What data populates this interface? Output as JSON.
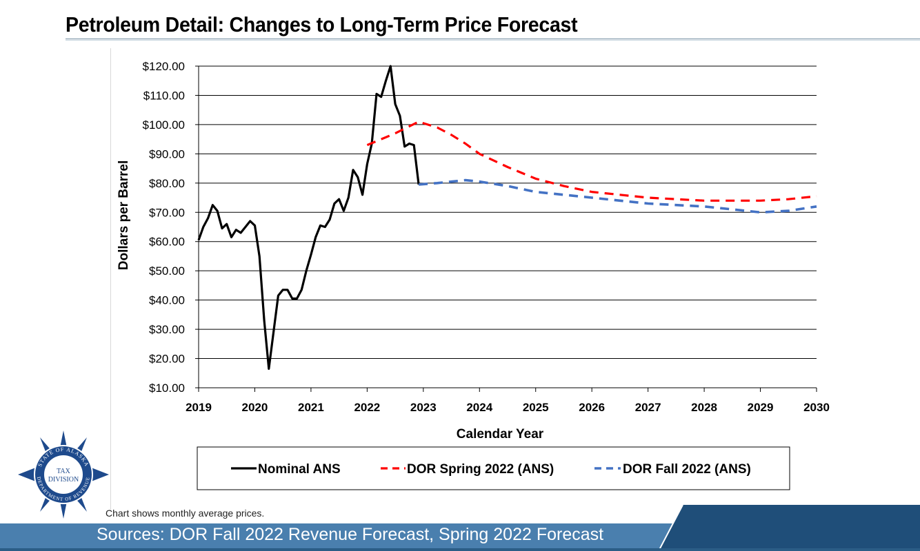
{
  "header": {
    "title": "Petroleum Detail:  Changes to Long-Term Price Forecast"
  },
  "footer": {
    "note": "Chart shows monthly average prices.",
    "sources": "Sources:  DOR Fall 2022 Revenue Forecast, Spring 2022 Forecast"
  },
  "logo": {
    "lines": [
      "STATE OF ALASKA",
      "TAX",
      "DIVISION",
      "DEPARTMENT OF REVENUE"
    ]
  },
  "colors": {
    "nominal": "#000000",
    "spring": "#ff0000",
    "fall": "#4472c4",
    "footer_band": "#4a7fae",
    "footer_dark": "#1f4e79"
  },
  "chart_data": {
    "type": "line",
    "title": "",
    "xlabel": "Calendar Year",
    "ylabel": "Dollars per Barrel",
    "xlim": [
      2019,
      2030
    ],
    "ylim": [
      10,
      120
    ],
    "x_ticks": [
      2019,
      2020,
      2021,
      2022,
      2023,
      2024,
      2025,
      2026,
      2027,
      2028,
      2029,
      2030
    ],
    "y_ticks": [
      10,
      20,
      30,
      40,
      50,
      60,
      70,
      80,
      90,
      100,
      110,
      120
    ],
    "y_tick_labels": [
      "$10.00",
      "$20.00",
      "$30.00",
      "$40.00",
      "$50.00",
      "$60.00",
      "$70.00",
      "$80.00",
      "$90.00",
      "$100.00",
      "$110.00",
      "$120.00"
    ],
    "grid": "horizontal",
    "legend_position": "bottom",
    "series": [
      {
        "name": "Nominal ANS",
        "style": "solid",
        "x": [
          2019.0,
          2019.083,
          2019.167,
          2019.25,
          2019.333,
          2019.417,
          2019.5,
          2019.583,
          2019.667,
          2019.75,
          2019.833,
          2019.917,
          2020.0,
          2020.083,
          2020.167,
          2020.25,
          2020.333,
          2020.417,
          2020.5,
          2020.583,
          2020.667,
          2020.75,
          2020.833,
          2020.917,
          2021.0,
          2021.083,
          2021.167,
          2021.25,
          2021.333,
          2021.417,
          2021.5,
          2021.583,
          2021.667,
          2021.75,
          2021.833,
          2021.917,
          2022.0,
          2022.083,
          2022.167,
          2022.25,
          2022.333,
          2022.417,
          2022.5,
          2022.583,
          2022.667,
          2022.75,
          2022.833,
          2022.917
        ],
        "values": [
          60.5,
          65,
          68,
          72.5,
          70.5,
          64.5,
          66,
          61.5,
          64,
          63,
          65,
          67,
          65.5,
          55,
          33,
          16.5,
          29,
          41.5,
          43.5,
          43.5,
          40.5,
          40.5,
          43.5,
          50,
          55.5,
          61.5,
          65.5,
          65,
          67.5,
          73,
          74.5,
          70.5,
          75,
          84.5,
          82,
          76,
          86.5,
          93.5,
          110.5,
          109.5,
          115,
          120,
          107,
          103,
          92.5,
          93.5,
          93,
          79.5
        ]
      },
      {
        "name": "DOR Spring 2022 (ANS)",
        "style": "dashed",
        "x": [
          2022.0,
          2022.5,
          2022.917,
          2023.25,
          2023.5,
          2023.75,
          2024.0,
          2024.5,
          2025.0,
          2025.5,
          2026.0,
          2026.5,
          2027.0,
          2027.5,
          2028.0,
          2028.5,
          2029.0,
          2029.5,
          2030.0
        ],
        "values": [
          93,
          97,
          101,
          99,
          96.5,
          93.5,
          90,
          85.5,
          81.5,
          79,
          77,
          76,
          75,
          74.5,
          74,
          74,
          74,
          74.5,
          75.5
        ]
      },
      {
        "name": "DOR Fall 2022 (ANS)",
        "style": "dashed",
        "x": [
          2022.917,
          2023.25,
          2023.5,
          2023.75,
          2024.0,
          2024.5,
          2025.0,
          2025.5,
          2026.0,
          2026.5,
          2027.0,
          2027.5,
          2028.0,
          2028.5,
          2029.0,
          2029.5,
          2030.0
        ],
        "values": [
          79.5,
          80,
          80.5,
          81,
          80.5,
          79,
          77,
          76,
          75,
          74,
          73,
          72.5,
          72,
          71,
          70,
          70.5,
          72
        ]
      }
    ]
  }
}
